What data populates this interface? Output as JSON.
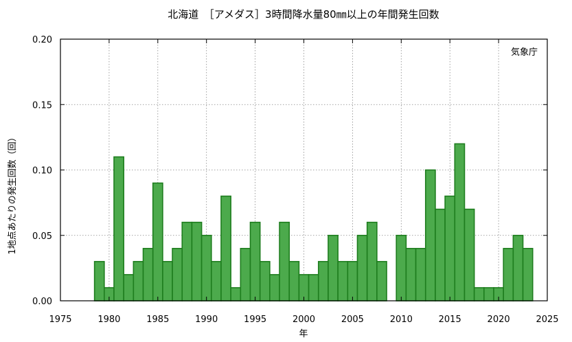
{
  "chart_data": {
    "type": "bar",
    "title": "北海道　［アメダス］3時間降水量80㎜以上の年間発生回数",
    "xlabel": "年",
    "ylabel": "1地点あたりの発生回数（回）",
    "source_label": "気象庁",
    "xlim": [
      1975,
      2025
    ],
    "ylim": [
      0,
      0.2
    ],
    "xticks": [
      1975,
      1980,
      1985,
      1990,
      1995,
      2000,
      2005,
      2010,
      2015,
      2020,
      2025
    ],
    "yticks": [
      "0.00",
      "0.05",
      "0.10",
      "0.15",
      "0.20"
    ],
    "grid": true,
    "bar_color": "#4caa4c",
    "edge_color": "#1e7d1e",
    "x": [
      1979,
      1980,
      1981,
      1982,
      1983,
      1984,
      1985,
      1986,
      1987,
      1988,
      1989,
      1990,
      1991,
      1992,
      1993,
      1994,
      1995,
      1996,
      1997,
      1998,
      1999,
      2000,
      2001,
      2002,
      2003,
      2004,
      2005,
      2006,
      2007,
      2008,
      2009,
      2010,
      2011,
      2012,
      2013,
      2014,
      2015,
      2016,
      2017,
      2018,
      2019,
      2020,
      2021,
      2022,
      2023
    ],
    "values": [
      0.03,
      0.01,
      0.11,
      0.02,
      0.03,
      0.04,
      0.09,
      0.03,
      0.04,
      0.06,
      0.06,
      0.05,
      0.03,
      0.08,
      0.01,
      0.04,
      0.06,
      0.03,
      0.02,
      0.06,
      0.03,
      0.02,
      0.02,
      0.03,
      0.05,
      0.03,
      0.03,
      0.05,
      0.06,
      0.03,
      0.0,
      0.05,
      0.04,
      0.04,
      0.1,
      0.07,
      0.08,
      0.12,
      0.07,
      0.01,
      0.01,
      0.01,
      0.04,
      0.05,
      0.04
    ]
  }
}
